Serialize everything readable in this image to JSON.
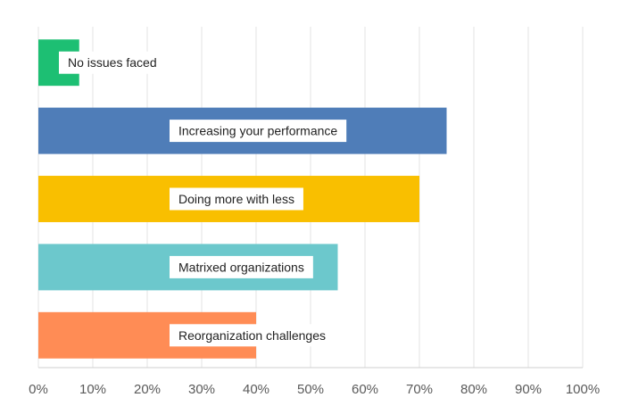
{
  "chart_data": {
    "type": "bar",
    "orientation": "horizontal",
    "title": "",
    "xlabel": "",
    "ylabel": "",
    "xlim": [
      0,
      100
    ],
    "x_ticks": [
      "0%",
      "10%",
      "20%",
      "30%",
      "40%",
      "50%",
      "60%",
      "70%",
      "80%",
      "90%",
      "100%"
    ],
    "grid": true,
    "categories": [
      "No issues faced",
      "Increasing your performance",
      "Doing more with less",
      "Matrixed organizations",
      "Reorganization challenges"
    ],
    "values": [
      7.5,
      75,
      70,
      55,
      40
    ],
    "colors": [
      "#1dbf73",
      "#4f7db8",
      "#f9bf00",
      "#6cc8cc",
      "#ff8c55"
    ]
  }
}
